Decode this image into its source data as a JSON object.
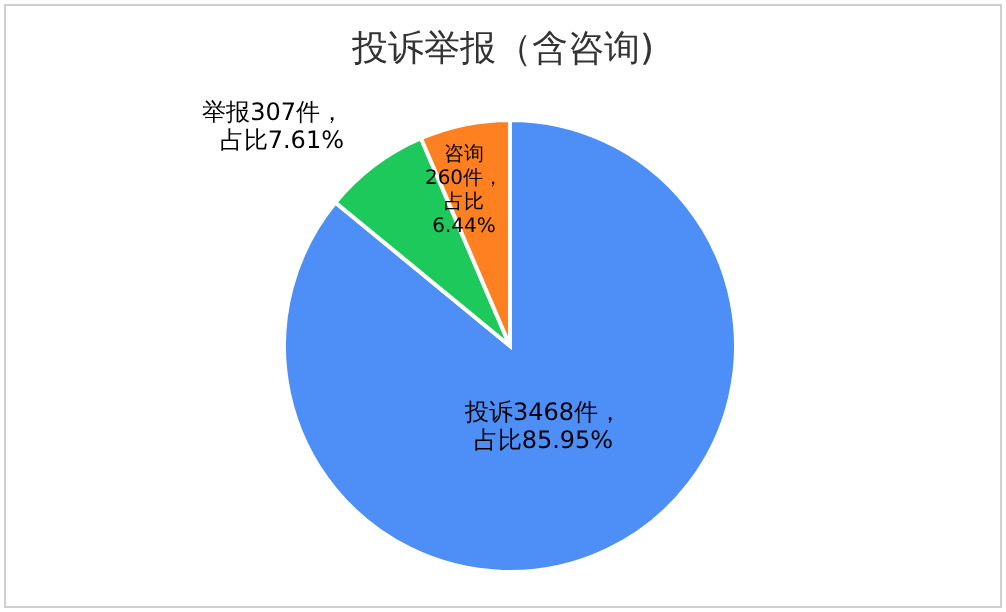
{
  "chart_data": {
    "type": "pie",
    "title": "投诉举报（含咨询)",
    "categories": [
      "投诉",
      "举报",
      "咨询"
    ],
    "values": [
      3468,
      307,
      260
    ],
    "colors": [
      "#4d8ff7",
      "#1ec95c",
      "#ff8020"
    ],
    "value_labels": [
      "3468件，占比85.95%",
      "307件，占比7.61%",
      "260件，占比6.44%"
    ]
  }
}
